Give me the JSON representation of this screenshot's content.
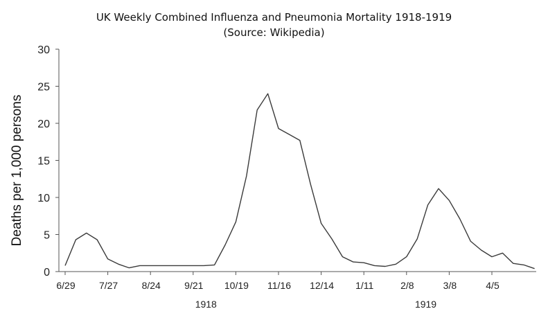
{
  "chart_data": {
    "type": "line",
    "title": "UK Weekly Combined Influenza and Pneumonia Mortality 1918-1919",
    "subtitle": "(Source: Wikipedia)",
    "xlabel": "",
    "ylabel": "Deaths per 1,000 persons",
    "ylim": [
      0,
      30
    ],
    "yticks": [
      "0",
      "5",
      "10",
      "15",
      "20",
      "25",
      "30"
    ],
    "xticks": [
      "6/29",
      "7/27",
      "8/24",
      "9/21",
      "10/19",
      "11/16",
      "12/14",
      "1/11",
      "2/8",
      "3/8",
      "4/5"
    ],
    "year_labels": [
      "1918",
      "1919"
    ],
    "grid": false,
    "legend": "none",
    "line_color": "#3a3a3a",
    "series": [
      {
        "x": [
          "6/29",
          "7/6",
          "7/13",
          "7/20",
          "7/27",
          "8/3",
          "8/10",
          "8/17",
          "8/24",
          "8/31",
          "9/7",
          "9/14",
          "9/21",
          "9/28",
          "10/5",
          "10/12",
          "10/19",
          "10/26",
          "11/2",
          "11/9",
          "11/16",
          "11/23",
          "11/30",
          "12/7",
          "12/14",
          "12/21",
          "12/28",
          "1/4",
          "1/11",
          "1/18",
          "1/25",
          "2/1",
          "2/8",
          "2/15",
          "2/22",
          "3/1",
          "3/8",
          "3/15",
          "3/22",
          "3/29",
          "4/5",
          "4/12",
          "4/19",
          "4/26",
          "5/3"
        ],
        "values": [
          0.8,
          4.3,
          5.2,
          4.3,
          1.7,
          1.0,
          0.5,
          0.8,
          0.8,
          0.8,
          0.8,
          0.8,
          0.8,
          0.8,
          0.9,
          3.6,
          6.7,
          12.9,
          21.8,
          24.0,
          19.3,
          18.5,
          17.7,
          11.8,
          6.5,
          4.4,
          2.0,
          1.3,
          1.2,
          0.8,
          0.7,
          1.0,
          2.0,
          4.4,
          9.0,
          11.2,
          9.6,
          7.1,
          4.1,
          2.9,
          2.0,
          2.5,
          1.1,
          0.9,
          0.4
        ]
      }
    ]
  }
}
